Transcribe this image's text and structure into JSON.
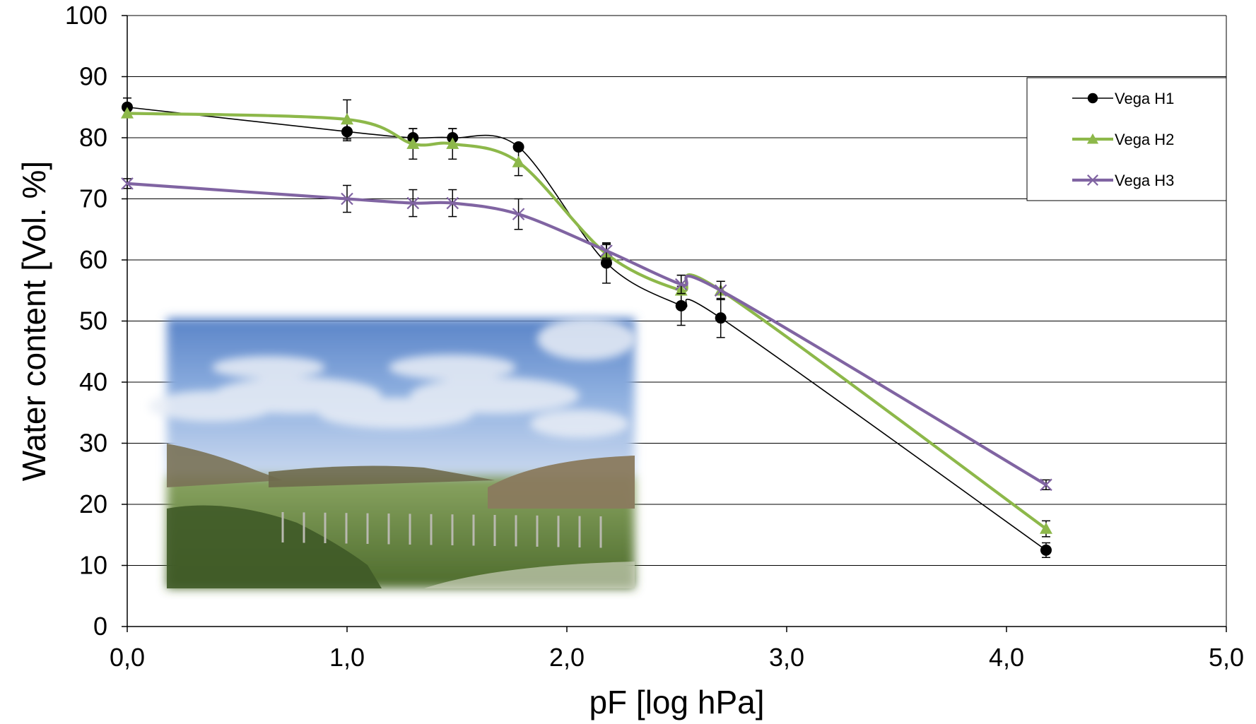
{
  "chart_data": {
    "type": "line",
    "xlabel": "pF [log hPa]",
    "ylabel": "Water content [Vol. %]",
    "xlim": [
      0,
      5
    ],
    "ylim": [
      0,
      100
    ],
    "xticks": [
      "0,0",
      "1,0",
      "2,0",
      "3,0",
      "4,0",
      "5,0"
    ],
    "xtick_values": [
      0,
      1,
      2,
      3,
      4,
      5
    ],
    "yticks": [
      "0",
      "10",
      "20",
      "30",
      "40",
      "50",
      "60",
      "70",
      "80",
      "90",
      "100"
    ],
    "ytick_values": [
      0,
      10,
      20,
      30,
      40,
      50,
      60,
      70,
      80,
      90,
      100
    ],
    "grid": "horizontal",
    "legend_position": "top-right",
    "x": [
      0,
      1.0,
      1.3,
      1.48,
      1.78,
      2.18,
      2.52,
      2.7,
      4.18
    ],
    "series": [
      {
        "name": "Vega H1",
        "marker": "circle",
        "color": "#000000",
        "values": [
          85,
          81,
          80,
          80,
          78.5,
          59.5,
          52.5,
          50.5,
          12.5
        ],
        "errors": [
          1.5,
          1.5,
          1.5,
          1.5,
          0,
          3.3,
          3.2,
          3.2,
          1.2
        ]
      },
      {
        "name": "Vega H2",
        "marker": "triangle",
        "color": "#8db84a",
        "values": [
          84,
          83,
          79,
          79,
          76,
          61,
          55,
          55,
          16
        ],
        "errors": [
          0.5,
          3.2,
          2.5,
          2.5,
          2.2,
          1.5,
          2.5,
          1.5,
          1.3
        ]
      },
      {
        "name": "Vega H3",
        "marker": "x",
        "color": "#8064a2",
        "values": [
          72.5,
          70,
          69.3,
          69.3,
          67.5,
          61.5,
          56,
          55,
          23.2
        ],
        "errors": [
          0.8,
          2.2,
          2.2,
          2.2,
          2.5,
          1.2,
          1.5,
          1.5,
          0.8
        ]
      }
    ]
  },
  "photo": {
    "name": "landscape-photo"
  }
}
